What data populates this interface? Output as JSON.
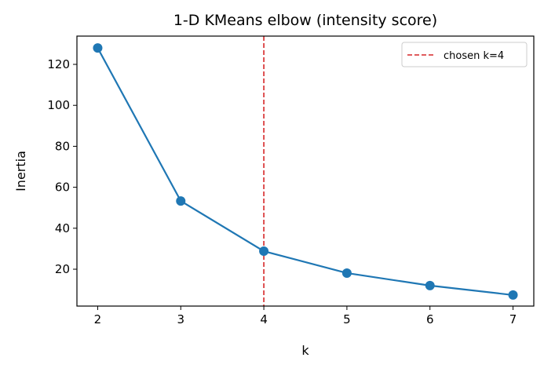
{
  "chart_data": {
    "type": "line",
    "title": "1-D KMeans elbow (intensity score)",
    "xlabel": "k",
    "ylabel": "Inertia",
    "x": [
      2,
      3,
      4,
      5,
      6,
      7
    ],
    "series": [
      {
        "values": [
          128.0,
          53.3,
          28.8,
          18.1,
          12.0,
          7.4
        ],
        "color": "#1f77b4",
        "marker": "circle"
      }
    ],
    "vline": {
      "x": 4,
      "label": "chosen k=4",
      "color": "#d62728",
      "style": "dashed"
    },
    "xticks": [
      "2",
      "3",
      "4",
      "5",
      "6",
      "7"
    ],
    "yticks": [
      "20",
      "40",
      "60",
      "80",
      "100",
      "120"
    ],
    "xlim": [
      1.75,
      7.25
    ],
    "ylim": [
      2.0,
      133.8
    ],
    "grid": false,
    "legend_position": "top-right"
  }
}
